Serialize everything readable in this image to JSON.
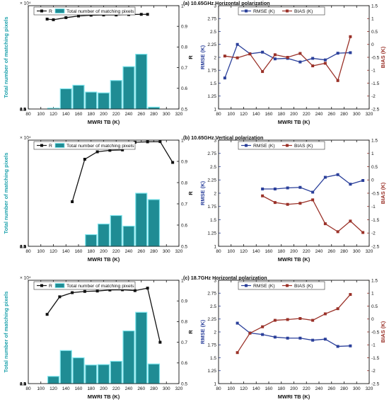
{
  "colors": {
    "bar_fill": "#1f8c94",
    "bar_edge": "#7ee6ee",
    "count_axis": "#1aa0ab",
    "r_line": "#111111",
    "rmse": "#2a3f9a",
    "bias": "#9a3128",
    "axis": "#111111"
  },
  "chart_data": [
    {
      "type": "bar+line",
      "title": "(a) 10.65GHz Horizontal polarization",
      "xlabel": "MWRI TB (K)",
      "ylabel_left": "Total number of matching pixels",
      "ylabel_right": "R",
      "x_ticks": [
        "80",
        "100",
        "120",
        "140",
        "160",
        "180",
        "200",
        "220",
        "240",
        "260",
        "280",
        "300",
        "320"
      ],
      "xlim": [
        80,
        320
      ],
      "y_left_ticks": [
        "0",
        "0.5",
        "1",
        "1.5",
        "2",
        "2.5",
        "3",
        "3.5",
        "4",
        "4.5",
        "5"
      ],
      "y_left_exponent": "× 10⁴",
      "ylim_left": [
        0,
        50000
      ],
      "y_right_ticks": [
        "0.5",
        "0.6",
        "0.7",
        "0.8",
        "0.9",
        "1"
      ],
      "ylim_right": [
        0.5,
        1.0
      ],
      "legend": {
        "line": "R",
        "bar": "Total number of matching pixels"
      },
      "bars": {
        "x": [
          120,
          140,
          160,
          180,
          200,
          220,
          240,
          260,
          280
        ],
        "values": [
          400,
          9800,
          11500,
          8200,
          7800,
          13800,
          20500,
          26500,
          900
        ]
      },
      "r_line": {
        "x": [
          110,
          120,
          140,
          160,
          180,
          200,
          220,
          240,
          260,
          270
        ],
        "values": [
          0.935,
          0.932,
          0.942,
          0.95,
          0.954,
          0.955,
          0.955,
          0.957,
          0.958,
          0.958
        ]
      }
    },
    {
      "type": "line",
      "xlabel": "MWRI TB (K)",
      "ylabel_left": "RMSE (K)",
      "ylabel_right": "BIAS (K)",
      "x_ticks": [
        "80",
        "100",
        "120",
        "140",
        "160",
        "180",
        "200",
        "220",
        "240",
        "260",
        "280",
        "300",
        "320"
      ],
      "xlim": [
        80,
        320
      ],
      "y_left_ticks": [
        "1",
        "1.25",
        "1.5",
        "1.75",
        "2",
        "2.25",
        "2.5",
        "2.75",
        "3"
      ],
      "ylim_left": [
        1,
        3
      ],
      "y_right_ticks": [
        "-2.5",
        "-2",
        "-1.5",
        "-1",
        "-0.5",
        "0",
        "0.5",
        "1",
        "1.5"
      ],
      "ylim_right": [
        -2.5,
        1.5
      ],
      "series": [
        {
          "name": "RMSE (K)",
          "axis": "left",
          "x": [
            90,
            110,
            130,
            150,
            170,
            190,
            210,
            230,
            250,
            270,
            290
          ],
          "values": [
            1.6,
            2.25,
            2.07,
            2.1,
            1.97,
            1.98,
            1.91,
            1.98,
            1.95,
            2.08,
            2.09
          ]
        },
        {
          "name": "BIAS (K)",
          "axis": "right",
          "x": [
            90,
            110,
            130,
            150,
            170,
            190,
            210,
            230,
            250,
            270,
            290
          ],
          "values": [
            -0.45,
            -0.52,
            -0.37,
            -1.05,
            -0.4,
            -0.5,
            -0.35,
            -0.83,
            -0.73,
            -1.4,
            0.3
          ]
        }
      ]
    },
    {
      "type": "bar+line",
      "title": "(b) 10.65GHz Vertical polarization",
      "xlabel": "MWRI TB (K)",
      "ylabel_left": "Total number of matching pixels",
      "ylabel_right": "R",
      "x_ticks": [
        "80",
        "100",
        "120",
        "140",
        "160",
        "180",
        "200",
        "220",
        "240",
        "260",
        "280",
        "300",
        "320"
      ],
      "xlim": [
        80,
        320
      ],
      "y_left_ticks": [
        "0",
        "0.5",
        "1",
        "1.5",
        "2",
        "2.5",
        "3",
        "3.5",
        "4",
        "4.5",
        "5"
      ],
      "y_left_exponent": "× 10⁴",
      "ylim_left": [
        0,
        50000
      ],
      "y_right_ticks": [
        "0.5",
        "0.6",
        "0.7",
        "0.8",
        "0.9",
        "1"
      ],
      "ylim_right": [
        0.5,
        1.0
      ],
      "legend": {
        "line": "R",
        "bar": "Total number of matching pixels"
      },
      "bars": {
        "x": [
          180,
          200,
          220,
          240,
          260,
          280
        ],
        "values": [
          5500,
          10500,
          14500,
          9500,
          25000,
          22000
        ]
      },
      "r_line": {
        "x": [
          150,
          170,
          190,
          210,
          230,
          250,
          270,
          290,
          310
        ],
        "values": [
          0.71,
          0.91,
          0.945,
          0.952,
          0.954,
          0.99,
          0.992,
          0.993,
          0.895
        ]
      }
    },
    {
      "type": "line",
      "xlabel": "MWRI TB (K)",
      "ylabel_left": "RMSE (K)",
      "ylabel_right": "BIAS (K)",
      "x_ticks": [
        "80",
        "100",
        "120",
        "140",
        "160",
        "180",
        "200",
        "220",
        "240",
        "260",
        "280",
        "300",
        "320"
      ],
      "xlim": [
        80,
        320
      ],
      "y_left_ticks": [
        "1",
        "1.25",
        "1.5",
        "1.75",
        "2",
        "2.25",
        "2.5",
        "2.75",
        "3"
      ],
      "ylim_left": [
        1,
        3
      ],
      "y_right_ticks": [
        "-2.5",
        "-2",
        "-1.5",
        "-1",
        "-0.5",
        "0",
        "0.5",
        "1",
        "1.5"
      ],
      "ylim_right": [
        -2.5,
        1.5
      ],
      "series": [
        {
          "name": "RMSE (K)",
          "axis": "left",
          "x": [
            150,
            170,
            190,
            210,
            230,
            250,
            270,
            290,
            310
          ],
          "values": [
            2.08,
            2.08,
            2.1,
            2.11,
            2.02,
            2.3,
            2.35,
            2.17,
            2.24
          ]
        },
        {
          "name": "BIAS (K)",
          "axis": "right",
          "x": [
            150,
            170,
            190,
            210,
            230,
            250,
            270,
            290,
            310
          ],
          "values": [
            -0.6,
            -0.85,
            -0.92,
            -0.88,
            -0.75,
            -1.65,
            -1.95,
            -1.55,
            -1.98
          ]
        }
      ]
    },
    {
      "type": "bar+line",
      "title": "(c) 18.7GHz Horizontal polarization",
      "xlabel": "MWRI TB (K)",
      "ylabel_left": "Total number of matching pixels",
      "ylabel_right": "R",
      "x_ticks": [
        "80",
        "100",
        "120",
        "140",
        "160",
        "180",
        "200",
        "220",
        "240",
        "260",
        "280",
        "300",
        "320"
      ],
      "xlim": [
        80,
        320
      ],
      "y_left_ticks": [
        "0",
        "0.5",
        "1",
        "1.5",
        "2",
        "2.5",
        "3",
        "3.5",
        "4",
        "4.5",
        "5"
      ],
      "y_left_exponent": "× 10⁴",
      "ylim_left": [
        0,
        50000
      ],
      "y_right_ticks": [
        "0.5",
        "0.6",
        "0.7",
        "0.8",
        "0.9",
        "1"
      ],
      "ylim_right": [
        0.5,
        1.0
      ],
      "legend": {
        "line": "R",
        "bar": "Total number of matching pixels"
      },
      "bars": {
        "x": [
          120,
          140,
          160,
          180,
          200,
          220,
          240,
          260,
          280
        ],
        "values": [
          3500,
          16000,
          12500,
          9000,
          9200,
          10800,
          25500,
          34500,
          9500
        ]
      },
      "r_line": {
        "x": [
          110,
          130,
          150,
          170,
          190,
          210,
          230,
          250,
          270,
          290
        ],
        "values": [
          0.835,
          0.92,
          0.94,
          0.946,
          0.948,
          0.953,
          0.954,
          0.95,
          0.962,
          0.7
        ]
      }
    },
    {
      "type": "line",
      "xlabel": "MWRI TB (K)",
      "ylabel_left": "RMSE (K)",
      "ylabel_right": "BIAS (K)",
      "x_ticks": [
        "80",
        "100",
        "120",
        "140",
        "160",
        "180",
        "200",
        "220",
        "240",
        "260",
        "280",
        "300",
        "320"
      ],
      "xlim": [
        80,
        320
      ],
      "y_left_ticks": [
        "1",
        "1.25",
        "1.5",
        "1.75",
        "2",
        "2.25",
        "2.5",
        "2.75",
        "3"
      ],
      "ylim_left": [
        1,
        3
      ],
      "y_right_ticks": [
        "-2.5",
        "-2",
        "-1.5",
        "-1",
        "-0.5",
        "0",
        "0.5",
        "1",
        "1.5"
      ],
      "ylim_right": [
        -2.5,
        1.5
      ],
      "series": [
        {
          "name": "RMSE (K)",
          "axis": "left",
          "x": [
            110,
            130,
            150,
            170,
            190,
            210,
            230,
            250,
            270,
            290
          ],
          "values": [
            2.17,
            1.98,
            1.95,
            1.9,
            1.88,
            1.88,
            1.84,
            1.86,
            1.72,
            1.73
          ]
        },
        {
          "name": "BIAS (K)",
          "axis": "right",
          "x": [
            110,
            130,
            150,
            170,
            190,
            210,
            230,
            250,
            270,
            290
          ],
          "values": [
            -1.3,
            -0.55,
            -0.3,
            -0.05,
            -0.02,
            0.02,
            -0.05,
            0.2,
            0.4,
            0.95
          ]
        }
      ]
    }
  ]
}
